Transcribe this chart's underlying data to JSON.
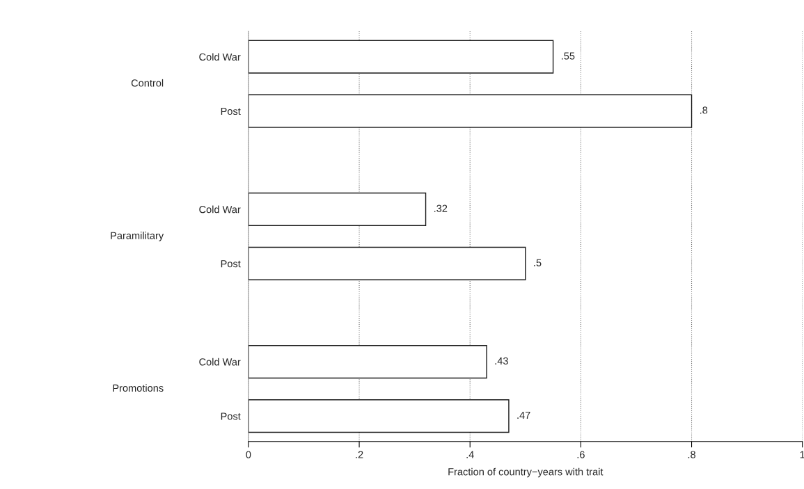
{
  "chart_data": {
    "type": "bar",
    "orientation": "horizontal",
    "categories": [
      "Cold War",
      "Post",
      "Cold War",
      "Post",
      "Cold War",
      "Post"
    ],
    "values": [
      0.55,
      0.8,
      0.32,
      0.5,
      0.43,
      0.47
    ],
    "value_labels": [
      ".55",
      ".8",
      ".32",
      ".5",
      ".43",
      ".47"
    ],
    "color": "#ffffff",
    "xlabel": "Fraction of country−years with trait",
    "annotations": [
      "Control",
      "Paramilitary",
      "Promotions"
    ],
    "xlim": [
      0,
      1
    ],
    "xticks": [
      0,
      {
        "value": 0.2,
        "label": ".2"
      },
      {
        "value": 0.4,
        "label": ".4"
      },
      {
        "value": 0.6,
        "label": ".6"
      },
      {
        "value": 0.8,
        "label": ".8"
      },
      1
    ],
    "grid": "x",
    "legend": false
  }
}
